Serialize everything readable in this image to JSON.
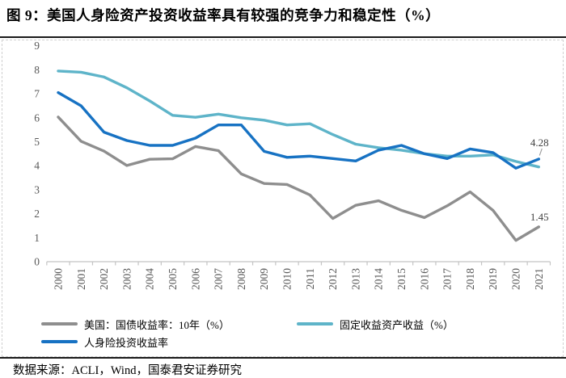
{
  "title": "图 9：美国人身险资产投资收益率具有较强的竞争力和稳定性（%）",
  "source": "数据来源：ACLI，Wind，国泰君安证券研究",
  "colors": {
    "treasury": "#8e8e8e",
    "fixed_income": "#5eb4c9",
    "life_insurance": "#1772c3",
    "axis": "#c4c4c4",
    "axis_text": "#595959",
    "annotation_text": "#404040",
    "leader": "#9a9a9a"
  },
  "chart_data": {
    "type": "line",
    "title": "",
    "xlabel": "",
    "ylabel": "",
    "ylim": [
      0,
      9
    ],
    "yticks": [
      0,
      1,
      2,
      3,
      4,
      5,
      6,
      7,
      8,
      9
    ],
    "grid": false,
    "legend_position": "bottom",
    "categories": [
      "2000",
      "2001",
      "2002",
      "2003",
      "2004",
      "2005",
      "2006",
      "2007",
      "2008",
      "2009",
      "2010",
      "2011",
      "2012",
      "2013",
      "2014",
      "2015",
      "2016",
      "2017",
      "2018",
      "2019",
      "2020",
      "2021"
    ],
    "series": [
      {
        "name": "美国：国债收益率：10年（%）",
        "color_key": "treasury",
        "values": [
          6.03,
          5.02,
          4.61,
          4.01,
          4.27,
          4.29,
          4.8,
          4.63,
          3.66,
          3.26,
          3.22,
          2.78,
          1.8,
          2.35,
          2.54,
          2.14,
          1.84,
          2.33,
          2.91,
          2.14,
          0.89,
          1.45
        ]
      },
      {
        "name": "固定收益资产收益（%）",
        "color_key": "fixed_income",
        "values": [
          7.95,
          7.9,
          7.7,
          7.25,
          6.7,
          6.1,
          6.02,
          6.15,
          6.0,
          5.9,
          5.7,
          5.75,
          5.3,
          4.9,
          4.75,
          4.65,
          4.5,
          4.4,
          4.4,
          4.45,
          4.18,
          3.95
        ]
      },
      {
        "name": "人身险投资收益率",
        "color_key": "life_insurance",
        "values": [
          7.05,
          6.5,
          5.4,
          5.05,
          4.85,
          4.85,
          5.15,
          5.7,
          5.7,
          4.6,
          4.35,
          4.4,
          4.3,
          4.2,
          4.65,
          4.85,
          4.5,
          4.3,
          4.7,
          4.55,
          3.9,
          4.28
        ]
      }
    ],
    "annotations": [
      {
        "text": "4.28",
        "series": 2,
        "category": "2021",
        "leader": true
      },
      {
        "text": "1.45",
        "series": 0,
        "category": "2021",
        "leader": false
      }
    ]
  }
}
